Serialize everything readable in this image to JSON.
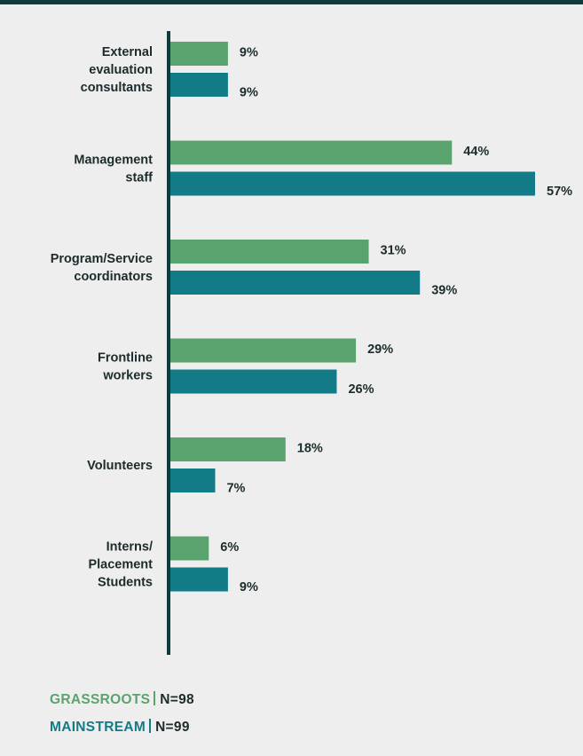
{
  "colors": {
    "grassroots": "#5aa36e",
    "mainstream": "#137a88",
    "axis": "#113a3a",
    "text": "#1c2b2b",
    "background": "#eeeeee"
  },
  "legend": {
    "grassroots": {
      "name": "GRASSROOTS",
      "n": "N=98"
    },
    "mainstream": {
      "name": "MAINSTREAM",
      "n": "N=99"
    }
  },
  "chart_data": {
    "type": "bar",
    "orientation": "horizontal",
    "categories": [
      [
        "External",
        "evaluation",
        "consultants"
      ],
      [
        "Management",
        "staff"
      ],
      [
        "Program/Service",
        "coordinators"
      ],
      [
        "Frontline",
        "workers"
      ],
      [
        "Volunteers"
      ],
      [
        "Interns/",
        "Placement",
        "Students"
      ]
    ],
    "series": [
      {
        "name": "GRASSROOTS",
        "values": [
          9,
          44,
          31,
          29,
          18,
          6
        ],
        "labels": [
          "9%",
          "44%",
          "31%",
          "29%",
          "18%",
          "6%"
        ]
      },
      {
        "name": "MAINSTREAM",
        "values": [
          9,
          57,
          39,
          26,
          7,
          9
        ],
        "labels": [
          "9%",
          "57%",
          "39%",
          "26%",
          "7%",
          "9%"
        ]
      }
    ],
    "xlim": [
      0,
      57
    ],
    "grid": false,
    "legend_position": "bottom-left"
  }
}
